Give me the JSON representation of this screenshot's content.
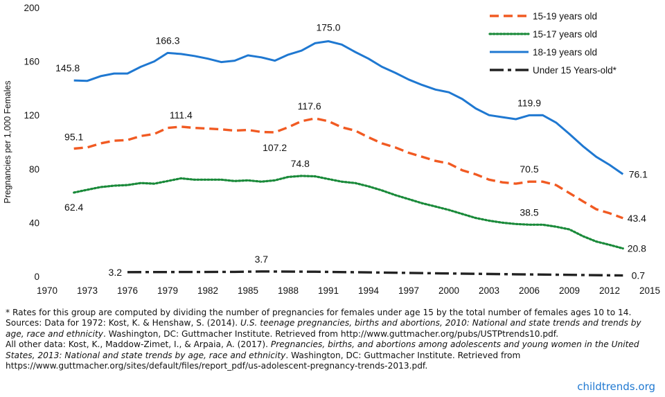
{
  "chart_data": {
    "type": "line",
    "title": "",
    "xlabel": "",
    "ylabel": "Pregnancies per 1,000 Females",
    "xlim": [
      1970,
      2015
    ],
    "ylim": [
      0,
      200
    ],
    "x_ticks": [
      1970,
      1973,
      1976,
      1979,
      1982,
      1985,
      1988,
      1991,
      1994,
      1997,
      2000,
      2003,
      2006,
      2009,
      2012,
      2015
    ],
    "y_ticks": [
      0,
      40,
      80,
      120,
      160,
      200
    ],
    "grid": false,
    "legend_position": "top-right",
    "series": [
      {
        "name": "15-19 years old",
        "color": "#f15a22",
        "dash": "dashed",
        "points": [
          [
            1972,
            95.1
          ],
          [
            1973,
            96
          ],
          [
            1974,
            99
          ],
          [
            1975,
            101
          ],
          [
            1976,
            101.5
          ],
          [
            1977,
            104.5
          ],
          [
            1978,
            106
          ],
          [
            1979,
            110.5
          ],
          [
            1980,
            111.4
          ],
          [
            1981,
            110.5
          ],
          [
            1982,
            110
          ],
          [
            1983,
            109.5
          ],
          [
            1984,
            108.5
          ],
          [
            1985,
            109
          ],
          [
            1986,
            107.5
          ],
          [
            1987,
            107.2
          ],
          [
            1988,
            111
          ],
          [
            1989,
            115.5
          ],
          [
            1990,
            117.6
          ],
          [
            1991,
            115.5
          ],
          [
            1992,
            111
          ],
          [
            1993,
            108.5
          ],
          [
            1994,
            103.5
          ],
          [
            1995,
            99
          ],
          [
            1996,
            96
          ],
          [
            1997,
            92
          ],
          [
            1998,
            89
          ],
          [
            1999,
            86
          ],
          [
            2000,
            84
          ],
          [
            2001,
            79
          ],
          [
            2002,
            76
          ],
          [
            2003,
            72
          ],
          [
            2004,
            70
          ],
          [
            2005,
            69
          ],
          [
            2006,
            70.5
          ],
          [
            2007,
            70.5
          ],
          [
            2008,
            68
          ],
          [
            2009,
            62
          ],
          [
            2010,
            56
          ],
          [
            2011,
            50
          ],
          [
            2012,
            47
          ],
          [
            2013,
            43.4
          ]
        ],
        "labels": [
          [
            1972,
            95.1
          ],
          [
            1980,
            111.4
          ],
          [
            1987,
            107.2
          ],
          [
            1990,
            117.6
          ],
          [
            2006,
            70.5
          ],
          [
            2013,
            43.4
          ]
        ]
      },
      {
        "name": "15-17 years old",
        "color": "#1a8a3a",
        "dash": "dotted",
        "points": [
          [
            1972,
            62.4
          ],
          [
            1973,
            64.5
          ],
          [
            1974,
            66.5
          ],
          [
            1975,
            67.5
          ],
          [
            1976,
            68
          ],
          [
            1977,
            69.5
          ],
          [
            1978,
            69
          ],
          [
            1979,
            71
          ],
          [
            1980,
            73
          ],
          [
            1981,
            72
          ],
          [
            1982,
            72
          ],
          [
            1983,
            72
          ],
          [
            1984,
            71
          ],
          [
            1985,
            71.5
          ],
          [
            1986,
            70.5
          ],
          [
            1987,
            71.5
          ],
          [
            1988,
            74
          ],
          [
            1989,
            74.8
          ],
          [
            1990,
            74.5
          ],
          [
            1991,
            72.5
          ],
          [
            1992,
            70.5
          ],
          [
            1993,
            69.5
          ],
          [
            1994,
            67
          ],
          [
            1995,
            64
          ],
          [
            1996,
            60.5
          ],
          [
            1997,
            57.5
          ],
          [
            1998,
            54.5
          ],
          [
            1999,
            52
          ],
          [
            2000,
            49.5
          ],
          [
            2001,
            46.5
          ],
          [
            2002,
            43.5
          ],
          [
            2003,
            41.5
          ],
          [
            2004,
            40
          ],
          [
            2005,
            39
          ],
          [
            2006,
            38.5
          ],
          [
            2007,
            38.5
          ],
          [
            2008,
            37
          ],
          [
            2009,
            35
          ],
          [
            2010,
            30
          ],
          [
            2011,
            26
          ],
          [
            2012,
            23.5
          ],
          [
            2013,
            20.8
          ]
        ],
        "labels": [
          [
            1972,
            62.4
          ],
          [
            1989,
            74.8
          ],
          [
            2006,
            38.5
          ],
          [
            2013,
            20.8
          ]
        ]
      },
      {
        "name": "18-19 years old",
        "color": "#1f78d1",
        "dash": "solid",
        "points": [
          [
            1972,
            145.8
          ],
          [
            1973,
            145.5
          ],
          [
            1974,
            149
          ],
          [
            1975,
            151
          ],
          [
            1976,
            151
          ],
          [
            1977,
            156
          ],
          [
            1978,
            160
          ],
          [
            1979,
            166.3
          ],
          [
            1980,
            165.5
          ],
          [
            1981,
            164
          ],
          [
            1982,
            162
          ],
          [
            1983,
            159.5
          ],
          [
            1984,
            160.5
          ],
          [
            1985,
            164.5
          ],
          [
            1986,
            163
          ],
          [
            1987,
            160.5
          ],
          [
            1988,
            165
          ],
          [
            1989,
            168
          ],
          [
            1990,
            173.5
          ],
          [
            1991,
            175.0
          ],
          [
            1992,
            172.5
          ],
          [
            1993,
            167
          ],
          [
            1994,
            162
          ],
          [
            1995,
            156
          ],
          [
            1996,
            151.5
          ],
          [
            1997,
            146.5
          ],
          [
            1998,
            142.5
          ],
          [
            1999,
            139
          ],
          [
            2000,
            137
          ],
          [
            2001,
            132
          ],
          [
            2002,
            125
          ],
          [
            2003,
            120
          ],
          [
            2004,
            118.5
          ],
          [
            2005,
            117
          ],
          [
            2006,
            119.9
          ],
          [
            2007,
            120
          ],
          [
            2008,
            114.5
          ],
          [
            2009,
            106
          ],
          [
            2010,
            97
          ],
          [
            2011,
            89
          ],
          [
            2012,
            83
          ],
          [
            2013,
            76.1
          ]
        ],
        "labels": [
          [
            1972,
            145.8
          ],
          [
            1979,
            166.3
          ],
          [
            1991,
            175.0
          ],
          [
            2006,
            119.9
          ],
          [
            2013,
            76.1
          ]
        ]
      },
      {
        "name": "Under 15 Years-old*",
        "color": "#222222",
        "dash": "dashdot",
        "points": [
          [
            1976,
            3.2
          ],
          [
            1980,
            3.3
          ],
          [
            1984,
            3.4
          ],
          [
            1986,
            3.7
          ],
          [
            1990,
            3.5
          ],
          [
            1995,
            2.9
          ],
          [
            2000,
            2.2
          ],
          [
            2005,
            1.6
          ],
          [
            2009,
            1.2
          ],
          [
            2013,
            0.7
          ]
        ],
        "labels": [
          [
            1976,
            3.2
          ],
          [
            1986,
            3.7
          ],
          [
            2013,
            0.7
          ]
        ]
      }
    ]
  },
  "notes": {
    "footnote": "* Rates for this group are computed by dividing the number of pregnancies for females under age 15 by the total number of females ages 10 to 14.",
    "source1_lead": "Sources: Data for 1972: Kost, K. & Henshaw, S. (2014). ",
    "source1_title": "U.S. teenage pregnancies, births and abortions, 2010: National and state trends and trends by age, race and ethnicity",
    "source1_tail": ". Washington, DC: Guttmacher Institute. Retrieved from http://www.guttmacher.org/pubs/USTPtrends10.pdf.",
    "source2_lead": "All other data: Kost, K., Maddow-Zimet, I., & Arpaia, A. (2017). ",
    "source2_title": "Pregnancies, births, and abortions among adolescents and young women in the United States, 2013: National and state trends by age, race and ethnicity",
    "source2_tail": ". Washington, DC: Guttmacher Institute. Retrieved from https://www.guttmacher.org/sites/default/files/report_pdf/us-adolescent-pregnancy-trends-2013.pdf."
  },
  "brand": "childtrends.org"
}
